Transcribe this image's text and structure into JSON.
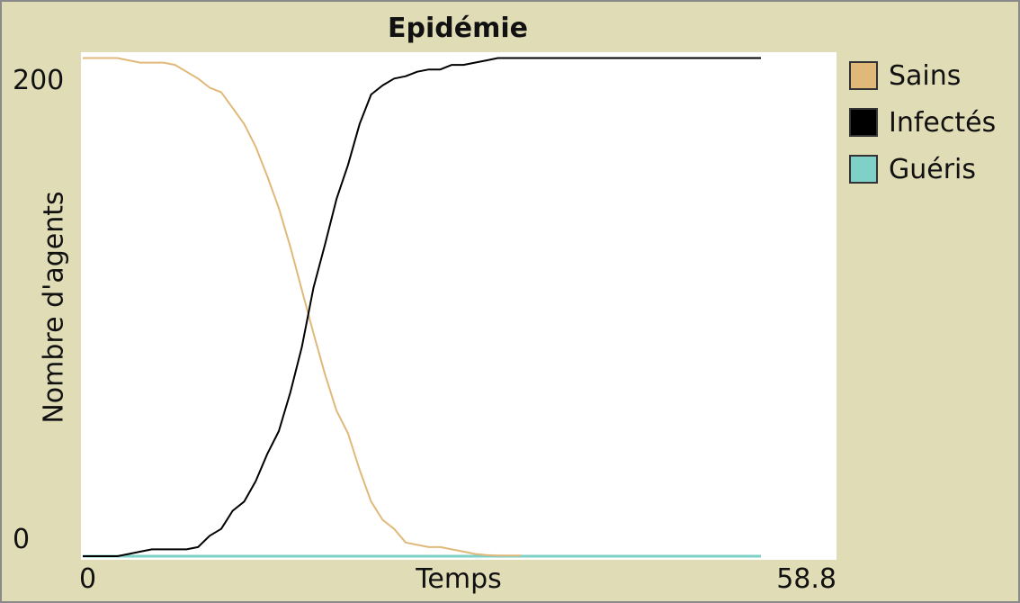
{
  "chart_data": {
    "type": "line",
    "title": "Epidémie",
    "xlabel": "Temps",
    "ylabel": "Nombre d'agents",
    "xlim": [
      0,
      58.8
    ],
    "ylim": [
      0,
      220
    ],
    "x_ticks": [
      "0",
      "58.8"
    ],
    "y_ticks": [
      "0",
      "200"
    ],
    "grid": false,
    "legend_position": "right",
    "series": [
      {
        "name": "Sains",
        "color": "#e0b97a",
        "points": [
          [
            0,
            219
          ],
          [
            2,
            219
          ],
          [
            3,
            219
          ],
          [
            4,
            218
          ],
          [
            5,
            217
          ],
          [
            6,
            217
          ],
          [
            7,
            217
          ],
          [
            8,
            216
          ],
          [
            9,
            213
          ],
          [
            10,
            210
          ],
          [
            11,
            206
          ],
          [
            12,
            204
          ],
          [
            13,
            197
          ],
          [
            14,
            190
          ],
          [
            15,
            180
          ],
          [
            16,
            167
          ],
          [
            17,
            153
          ],
          [
            18,
            136
          ],
          [
            19,
            117
          ],
          [
            20,
            98
          ],
          [
            21,
            80
          ],
          [
            22,
            64
          ],
          [
            23,
            54
          ],
          [
            24,
            38
          ],
          [
            25,
            24
          ],
          [
            26,
            16
          ],
          [
            27,
            12
          ],
          [
            28,
            6
          ],
          [
            29,
            5
          ],
          [
            30,
            4
          ],
          [
            31,
            4
          ],
          [
            32,
            3
          ],
          [
            33,
            2
          ],
          [
            34,
            1
          ],
          [
            35,
            0.5
          ],
          [
            36,
            0.3
          ],
          [
            38,
            0.3
          ]
        ]
      },
      {
        "name": "Infectés",
        "color": "#000000",
        "points": [
          [
            0,
            0
          ],
          [
            2,
            0
          ],
          [
            3,
            0
          ],
          [
            4,
            1
          ],
          [
            5,
            2
          ],
          [
            6,
            3
          ],
          [
            7,
            3
          ],
          [
            8,
            3
          ],
          [
            9,
            3
          ],
          [
            10,
            4
          ],
          [
            11,
            9
          ],
          [
            12,
            12
          ],
          [
            13,
            20
          ],
          [
            14,
            24
          ],
          [
            15,
            33
          ],
          [
            16,
            45
          ],
          [
            17,
            55
          ],
          [
            18,
            72
          ],
          [
            19,
            92
          ],
          [
            20,
            118
          ],
          [
            21,
            137
          ],
          [
            22,
            157
          ],
          [
            23,
            172
          ],
          [
            24,
            190
          ],
          [
            25,
            203
          ],
          [
            26,
            207
          ],
          [
            27,
            210
          ],
          [
            28,
            211
          ],
          [
            29,
            213
          ],
          [
            30,
            214
          ],
          [
            31,
            214
          ],
          [
            32,
            216
          ],
          [
            33,
            216
          ],
          [
            34,
            217
          ],
          [
            35,
            218
          ],
          [
            36,
            219
          ],
          [
            38,
            219
          ],
          [
            58.8,
            219
          ]
        ]
      },
      {
        "name": "Guéris",
        "color": "#7fd0c7",
        "points": [
          [
            0,
            0
          ],
          [
            58.8,
            0
          ]
        ]
      }
    ]
  }
}
